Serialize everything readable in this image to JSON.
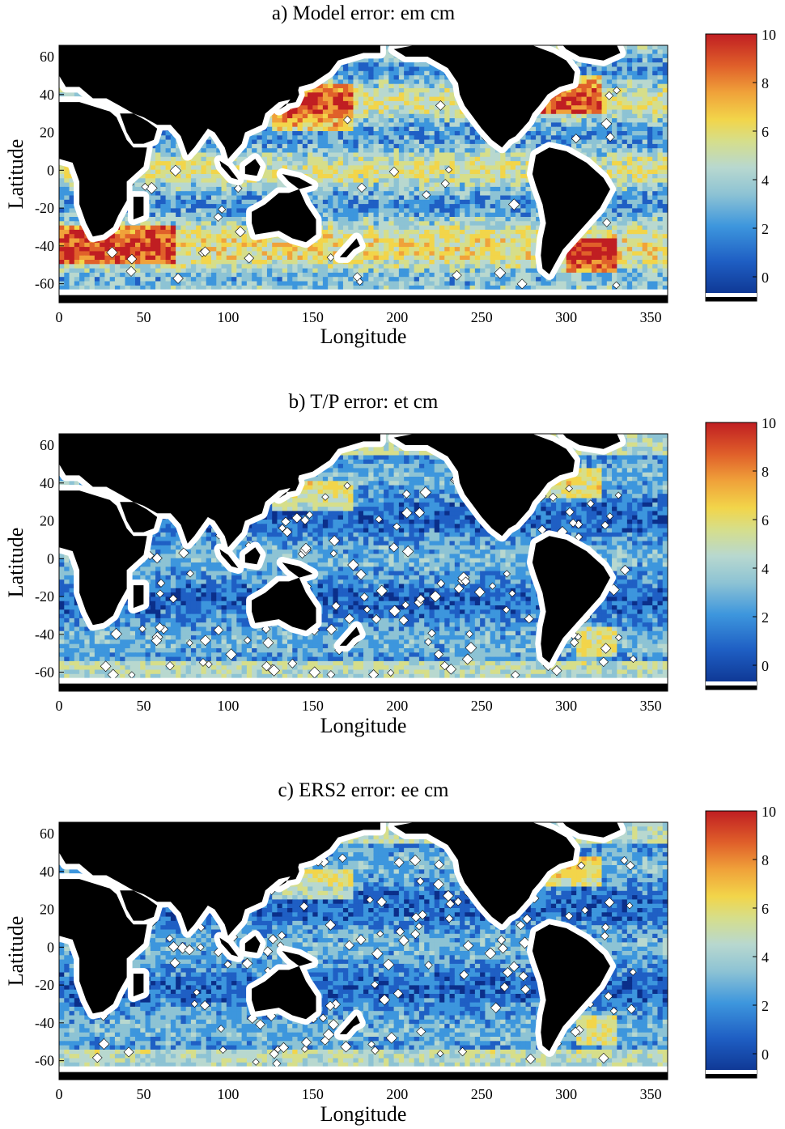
{
  "chart_data": [
    {
      "type": "heatmap",
      "title": "a) Model error: em cm",
      "xlabel": "Longitude",
      "ylabel": "Latitude",
      "xlim": [
        0,
        360
      ],
      "ylim": [
        -70,
        66
      ],
      "xticks": [
        0,
        50,
        100,
        150,
        200,
        250,
        300,
        350
      ],
      "yticks": [
        60,
        40,
        20,
        0,
        -20,
        -40,
        -60
      ],
      "colorbar": {
        "ticks": [
          10,
          8,
          6,
          4,
          2,
          0
        ],
        "range": [
          -1,
          10
        ]
      },
      "level": "high"
    },
    {
      "type": "heatmap",
      "title": "b) T/P error: et cm",
      "xlabel": "Longitude",
      "ylabel": "Latitude",
      "xlim": [
        0,
        360
      ],
      "ylim": [
        -70,
        66
      ],
      "xticks": [
        0,
        50,
        100,
        150,
        200,
        250,
        300,
        350
      ],
      "yticks": [
        60,
        40,
        20,
        0,
        -20,
        -40,
        -60
      ],
      "colorbar": {
        "ticks": [
          10,
          8,
          6,
          4,
          2,
          0
        ],
        "range": [
          -1,
          10
        ]
      },
      "level": "low"
    },
    {
      "type": "heatmap",
      "title": "c) ERS2 error: ee cm",
      "xlabel": "Longitude",
      "ylabel": "Latitude",
      "xlim": [
        0,
        360
      ],
      "ylim": [
        -70,
        66
      ],
      "xticks": [
        0,
        50,
        100,
        150,
        200,
        250,
        300,
        350
      ],
      "yticks": [
        60,
        40,
        20,
        0,
        -20,
        -40,
        -60
      ],
      "colorbar": {
        "ticks": [
          10,
          8,
          6,
          4,
          2,
          0
        ],
        "range": [
          -1,
          10
        ]
      },
      "level": "low"
    }
  ],
  "colors": {
    "land": "#000000",
    "colormap": [
      "#0b2f8a",
      "#1f5fc4",
      "#3d96dd",
      "#8dc3d4",
      "#b8d8cf",
      "#d6de8a",
      "#f2d54a",
      "#f0a23a",
      "#e0602a",
      "#c01e22"
    ]
  }
}
